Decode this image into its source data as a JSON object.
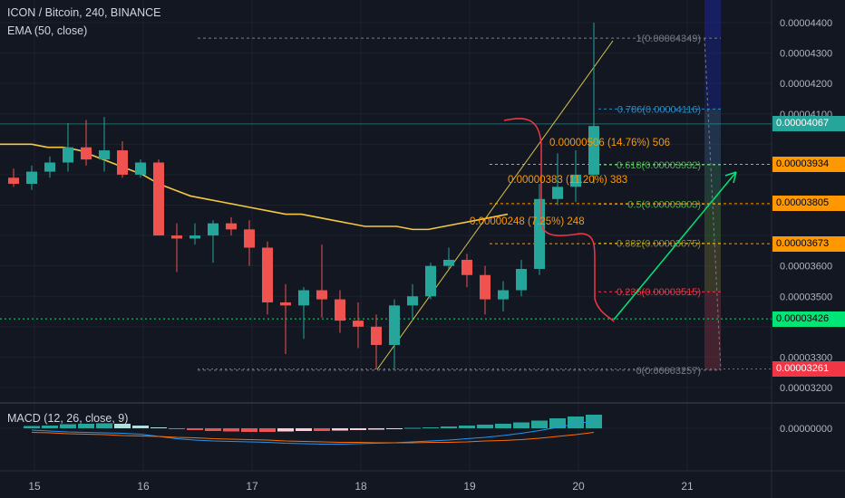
{
  "header": {
    "title": "ICON / Bitcoin, 240, BINANCE",
    "indicator": "EMA (50, close)",
    "macd_label": "MACD (12, 26, close, 9)"
  },
  "axis": {
    "y_ticks": [
      "0.00004400",
      "0.00004300",
      "0.00004200",
      "0.00004100",
      "0.00003600",
      "0.00003500",
      "0.00003300",
      "0.00003200"
    ],
    "macd_tick": "0.00000000",
    "x_ticks": [
      "15",
      "16",
      "17",
      "18",
      "19",
      "20",
      "21"
    ]
  },
  "price_tags": [
    {
      "label": "0.00004067",
      "bg": "#26a69a",
      "fg": "#ffffff",
      "value": 4.067e-05
    },
    {
      "label": "0.00003934",
      "bg": "#ff9800",
      "fg": "#000000",
      "value": 3.934e-05
    },
    {
      "label": "0.00003805",
      "bg": "#ff9800",
      "fg": "#000000",
      "value": 3.805e-05
    },
    {
      "label": "0.00003673",
      "bg": "#ff9800",
      "fg": "#000000",
      "value": 3.673e-05
    },
    {
      "label": "0.00003426",
      "bg": "#00e676",
      "fg": "#000000",
      "value": 3.426e-05
    },
    {
      "label": "0.00003261",
      "bg": "#f23645",
      "fg": "#ffffff",
      "value": 3.261e-05
    }
  ],
  "fib_levels": [
    {
      "label": "1(0.00004349)",
      "value": 4.349e-05,
      "color": "#787b86"
    },
    {
      "label": "0.786(0.00004116)",
      "value": 4.116e-05,
      "color": "#2e8bc0"
    },
    {
      "label": "0.618(0.00003932)",
      "value": 3.932e-05,
      "color": "#4caf50"
    },
    {
      "label": "0.5(0.00003803)",
      "value": 3.803e-05,
      "color": "#4caf50"
    },
    {
      "label": "0.382(0.00003675)",
      "value": 3.675e-05,
      "color": "#8d8d3a"
    },
    {
      "label": "0.236(0.00003515)",
      "value": 3.515e-05,
      "color": "#f23645"
    },
    {
      "label": "0(0.00003257)",
      "value": 3.257e-05,
      "color": "#787b86"
    }
  ],
  "annotations": [
    {
      "text": "0.00000506 (14.76%) 506",
      "color": "#ff9800"
    },
    {
      "text": "0.00000383 (11.20%) 383",
      "color": "#ff9800"
    },
    {
      "text": "0.00000248 (7.25%) 248",
      "color": "#ff9800"
    }
  ],
  "colors": {
    "up": "#26a69a",
    "down": "#ef5350",
    "ema": "#f5c842",
    "background": "#131722",
    "grid": "#1e222d",
    "text": "#b2b5be",
    "trendline": "#d4c24a",
    "macd_line": "#2196f3",
    "signal_line": "#ff6d00",
    "arrow": "#00e676",
    "arrow_curve": "#f23645"
  },
  "chart_data": {
    "type": "candlestick",
    "symbol": "ICON / Bitcoin",
    "interval": "240",
    "exchange": "BINANCE",
    "ylim": [
      3.14e-05,
      4.48e-05
    ],
    "x_labels": [
      "15",
      "16",
      "17",
      "18",
      "19",
      "20",
      "21"
    ],
    "candles": [
      {
        "o": 3.89e-05,
        "h": 3.92e-05,
        "l": 3.86e-05,
        "c": 3.87e-05
      },
      {
        "o": 3.87e-05,
        "h": 3.93e-05,
        "l": 3.85e-05,
        "c": 3.91e-05
      },
      {
        "o": 3.91e-05,
        "h": 3.96e-05,
        "l": 3.89e-05,
        "c": 3.94e-05
      },
      {
        "o": 3.94e-05,
        "h": 4.07e-05,
        "l": 3.91e-05,
        "c": 3.99e-05
      },
      {
        "o": 3.99e-05,
        "h": 4.08e-05,
        "l": 3.93e-05,
        "c": 3.95e-05
      },
      {
        "o": 3.95e-05,
        "h": 4.09e-05,
        "l": 3.91e-05,
        "c": 3.98e-05
      },
      {
        "o": 3.98e-05,
        "h": 4.01e-05,
        "l": 3.89e-05,
        "c": 3.9e-05
      },
      {
        "o": 3.9e-05,
        "h": 3.95e-05,
        "l": 3.89e-05,
        "c": 3.94e-05
      },
      {
        "o": 3.94e-05,
        "h": 3.95e-05,
        "l": 3.7e-05,
        "c": 3.7e-05
      },
      {
        "o": 3.7e-05,
        "h": 3.74e-05,
        "l": 3.58e-05,
        "c": 3.69e-05
      },
      {
        "o": 3.69e-05,
        "h": 3.74e-05,
        "l": 3.67e-05,
        "c": 3.7e-05
      },
      {
        "o": 3.7e-05,
        "h": 3.75e-05,
        "l": 3.61e-05,
        "c": 3.74e-05
      },
      {
        "o": 3.74e-05,
        "h": 3.76e-05,
        "l": 3.7e-05,
        "c": 3.72e-05
      },
      {
        "o": 3.72e-05,
        "h": 3.75e-05,
        "l": 3.6e-05,
        "c": 3.66e-05
      },
      {
        "o": 3.66e-05,
        "h": 3.68e-05,
        "l": 3.44e-05,
        "c": 3.48e-05
      },
      {
        "o": 3.48e-05,
        "h": 3.54e-05,
        "l": 3.31e-05,
        "c": 3.47e-05
      },
      {
        "o": 3.47e-05,
        "h": 3.53e-05,
        "l": 3.36e-05,
        "c": 3.52e-05
      },
      {
        "o": 3.52e-05,
        "h": 3.67e-05,
        "l": 3.43e-05,
        "c": 3.49e-05
      },
      {
        "o": 3.49e-05,
        "h": 3.52e-05,
        "l": 3.38e-05,
        "c": 3.42e-05
      },
      {
        "o": 3.42e-05,
        "h": 3.48e-05,
        "l": 3.33e-05,
        "c": 3.4e-05
      },
      {
        "o": 3.4e-05,
        "h": 3.44e-05,
        "l": 3.26e-05,
        "c": 3.34e-05
      },
      {
        "o": 3.34e-05,
        "h": 3.49e-05,
        "l": 3.26e-05,
        "c": 3.47e-05
      },
      {
        "o": 3.47e-05,
        "h": 3.54e-05,
        "l": 3.42e-05,
        "c": 3.5e-05
      },
      {
        "o": 3.5e-05,
        "h": 3.61e-05,
        "l": 3.49e-05,
        "c": 3.6e-05
      },
      {
        "o": 3.6e-05,
        "h": 3.66e-05,
        "l": 3.59e-05,
        "c": 3.62e-05
      },
      {
        "o": 3.62e-05,
        "h": 3.64e-05,
        "l": 3.53e-05,
        "c": 3.57e-05
      },
      {
        "o": 3.57e-05,
        "h": 3.6e-05,
        "l": 3.44e-05,
        "c": 3.49e-05
      },
      {
        "o": 3.49e-05,
        "h": 3.55e-05,
        "l": 3.45e-05,
        "c": 3.52e-05
      },
      {
        "o": 3.52e-05,
        "h": 3.62e-05,
        "l": 3.5e-05,
        "c": 3.59e-05
      },
      {
        "o": 3.59e-05,
        "h": 3.87e-05,
        "l": 3.57e-05,
        "c": 3.82e-05
      },
      {
        "o": 3.82e-05,
        "h": 3.97e-05,
        "l": 3.8e-05,
        "c": 3.86e-05
      },
      {
        "o": 3.86e-05,
        "h": 3.98e-05,
        "l": 3.81e-05,
        "c": 3.9e-05
      },
      {
        "o": 3.9e-05,
        "h": 4.4e-05,
        "l": 3.87e-05,
        "c": 4.06e-05
      }
    ],
    "ema50": [
      4e-05,
      4e-05,
      4e-05,
      3.99e-05,
      3.99e-05,
      3.98e-05,
      3.96e-05,
      3.94e-05,
      3.92e-05,
      3.9e-05,
      3.87e-05,
      3.85e-05,
      3.83e-05,
      3.82e-05,
      3.81e-05,
      3.8e-05,
      3.79e-05,
      3.78e-05,
      3.77e-05,
      3.77e-05,
      3.76e-05,
      3.75e-05,
      3.74e-05,
      3.73e-05,
      3.73e-05,
      3.73e-05,
      3.72e-05,
      3.72e-05,
      3.73e-05,
      3.74e-05,
      3.75e-05,
      3.76e-05,
      3.77e-05
    ],
    "macd_hist": [
      0.5,
      0.6,
      0.9,
      1.0,
      1.1,
      1.0,
      0.6,
      0.2,
      -0.2,
      -0.4,
      -0.6,
      -0.7,
      -0.8,
      -0.8,
      -0.7,
      -0.6,
      -0.6,
      -0.5,
      -0.4,
      -0.3,
      -0.1,
      0.1,
      0.2,
      0.4,
      0.6,
      0.8,
      1.0,
      1.3,
      1.7,
      2.2,
      2.6,
      3.0
    ],
    "macd_line": [
      -0.4,
      -0.6,
      -0.8,
      -0.9,
      -1.0,
      -1.1,
      -1.3,
      -1.8,
      -2.3,
      -2.6,
      -2.8,
      -2.9,
      -3.0,
      -3.1,
      -3.3,
      -3.4,
      -3.5,
      -3.5,
      -3.4,
      -3.3,
      -3.2,
      -3.0,
      -2.8,
      -2.6,
      -2.3,
      -2.0,
      -1.6,
      -1.1,
      -0.5,
      0.2,
      1.0,
      1.6
    ],
    "signal_line": [
      -0.9,
      -1.0,
      -1.2,
      -1.3,
      -1.4,
      -1.6,
      -1.7,
      -1.8,
      -2.0,
      -2.1,
      -2.3,
      -2.4,
      -2.5,
      -2.6,
      -2.8,
      -2.9,
      -3.0,
      -3.1,
      -3.1,
      -3.2,
      -3.2,
      -3.2,
      -3.1,
      -3.1,
      -3.0,
      -2.8,
      -2.7,
      -2.5,
      -2.2,
      -1.8,
      -1.4,
      -0.9
    ],
    "fibonacci": {
      "high": 4.349e-05,
      "low": 3.257e-05
    },
    "measurements": [
      "0.00000506 (14.76%) 506",
      "0.00000383 (11.20%) 383",
      "0.00000248 (7.25%) 248"
    ]
  }
}
